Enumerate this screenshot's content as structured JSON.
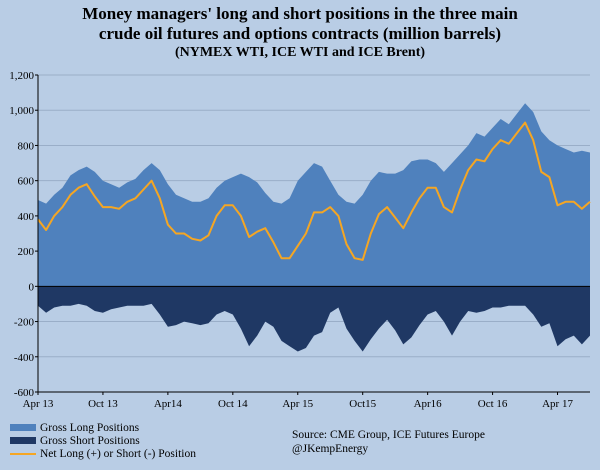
{
  "chart_data": {
    "type": "area",
    "title": [
      "Money managers' long and short positions in the three main",
      "crude oil futures and options contracts (million barrels)",
      "(NYMEX WTI, ICE WTI and ICE Brent)"
    ],
    "xlabel": "",
    "ylabel": "",
    "ylim": [
      -600,
      1200
    ],
    "yticks": [
      -600,
      -400,
      -200,
      0,
      200,
      400,
      600,
      800,
      1000,
      1200
    ],
    "ytick_labels": [
      "-600",
      "-400",
      "-200",
      "0",
      "200",
      "400",
      "600",
      "800",
      "1,000",
      "1,200"
    ],
    "xticks": [
      "Apr 13",
      "Oct 13",
      "Apr14",
      "Oct 14",
      "Apr 15",
      "Oct15",
      "Apr16",
      "Oct 16",
      "Apr 17"
    ],
    "x_start": "2013-04",
    "x_end": "2017-07",
    "gridlines": true,
    "series": [
      {
        "name": "Gross Long Positions",
        "kind": "area",
        "color": "#4f81bd",
        "values": [
          [
            0,
            490
          ],
          [
            1,
            470
          ],
          [
            2,
            520
          ],
          [
            3,
            560
          ],
          [
            4,
            630
          ],
          [
            5,
            660
          ],
          [
            6,
            680
          ],
          [
            7,
            650
          ],
          [
            8,
            600
          ],
          [
            9,
            580
          ],
          [
            10,
            560
          ],
          [
            11,
            590
          ],
          [
            12,
            610
          ],
          [
            13,
            660
          ],
          [
            14,
            700
          ],
          [
            15,
            660
          ],
          [
            16,
            580
          ],
          [
            17,
            520
          ],
          [
            18,
            500
          ],
          [
            19,
            480
          ],
          [
            20,
            480
          ],
          [
            21,
            500
          ],
          [
            22,
            560
          ],
          [
            23,
            600
          ],
          [
            24,
            620
          ],
          [
            25,
            640
          ],
          [
            26,
            620
          ],
          [
            27,
            590
          ],
          [
            28,
            530
          ],
          [
            29,
            480
          ],
          [
            30,
            470
          ],
          [
            31,
            500
          ],
          [
            32,
            600
          ],
          [
            33,
            650
          ],
          [
            34,
            700
          ],
          [
            35,
            680
          ],
          [
            36,
            600
          ],
          [
            37,
            520
          ],
          [
            38,
            480
          ],
          [
            39,
            470
          ],
          [
            40,
            520
          ],
          [
            41,
            600
          ],
          [
            42,
            650
          ],
          [
            43,
            640
          ],
          [
            44,
            640
          ],
          [
            45,
            660
          ],
          [
            46,
            710
          ],
          [
            47,
            720
          ],
          [
            48,
            720
          ],
          [
            49,
            700
          ],
          [
            50,
            650
          ],
          [
            51,
            700
          ],
          [
            52,
            750
          ],
          [
            53,
            800
          ],
          [
            54,
            870
          ],
          [
            55,
            850
          ],
          [
            56,
            900
          ],
          [
            57,
            950
          ],
          [
            58,
            920
          ],
          [
            59,
            980
          ],
          [
            60,
            1040
          ],
          [
            61,
            990
          ],
          [
            62,
            880
          ],
          [
            63,
            830
          ],
          [
            64,
            800
          ],
          [
            65,
            780
          ],
          [
            66,
            760
          ],
          [
            67,
            770
          ],
          [
            68,
            760
          ]
        ]
      },
      {
        "name": "Gross Short Positions",
        "kind": "area",
        "color": "#1f3864",
        "values": [
          [
            0,
            -110
          ],
          [
            1,
            -150
          ],
          [
            2,
            -120
          ],
          [
            3,
            -110
          ],
          [
            4,
            -110
          ],
          [
            5,
            -100
          ],
          [
            6,
            -110
          ],
          [
            7,
            -140
          ],
          [
            8,
            -150
          ],
          [
            9,
            -130
          ],
          [
            10,
            -120
          ],
          [
            11,
            -110
          ],
          [
            12,
            -110
          ],
          [
            13,
            -110
          ],
          [
            14,
            -100
          ],
          [
            15,
            -160
          ],
          [
            16,
            -230
          ],
          [
            17,
            -220
          ],
          [
            18,
            -200
          ],
          [
            19,
            -210
          ],
          [
            20,
            -220
          ],
          [
            21,
            -210
          ],
          [
            22,
            -160
          ],
          [
            23,
            -140
          ],
          [
            24,
            -160
          ],
          [
            25,
            -240
          ],
          [
            26,
            -340
          ],
          [
            27,
            -280
          ],
          [
            28,
            -200
          ],
          [
            29,
            -230
          ],
          [
            30,
            -310
          ],
          [
            31,
            -340
          ],
          [
            32,
            -370
          ],
          [
            33,
            -350
          ],
          [
            34,
            -280
          ],
          [
            35,
            -260
          ],
          [
            36,
            -150
          ],
          [
            37,
            -120
          ],
          [
            38,
            -240
          ],
          [
            39,
            -310
          ],
          [
            40,
            -370
          ],
          [
            41,
            -300
          ],
          [
            42,
            -240
          ],
          [
            43,
            -190
          ],
          [
            44,
            -250
          ],
          [
            45,
            -330
          ],
          [
            46,
            -290
          ],
          [
            47,
            -220
          ],
          [
            48,
            -160
          ],
          [
            49,
            -140
          ],
          [
            50,
            -200
          ],
          [
            51,
            -280
          ],
          [
            52,
            -200
          ],
          [
            53,
            -140
          ],
          [
            54,
            -150
          ],
          [
            55,
            -140
          ],
          [
            56,
            -120
          ],
          [
            57,
            -120
          ],
          [
            58,
            -110
          ],
          [
            59,
            -110
          ],
          [
            60,
            -110
          ],
          [
            61,
            -160
          ],
          [
            62,
            -230
          ],
          [
            63,
            -210
          ],
          [
            64,
            -340
          ],
          [
            65,
            -300
          ],
          [
            66,
            -280
          ],
          [
            67,
            -330
          ],
          [
            68,
            -280
          ]
        ]
      },
      {
        "name": "Net Long (+) or Short (-) Position",
        "kind": "line",
        "color": "#f5a623",
        "values": [
          [
            0,
            380
          ],
          [
            1,
            320
          ],
          [
            2,
            400
          ],
          [
            3,
            450
          ],
          [
            4,
            520
          ],
          [
            5,
            560
          ],
          [
            6,
            580
          ],
          [
            7,
            510
          ],
          [
            8,
            450
          ],
          [
            9,
            450
          ],
          [
            10,
            440
          ],
          [
            11,
            480
          ],
          [
            12,
            500
          ],
          [
            13,
            550
          ],
          [
            14,
            600
          ],
          [
            15,
            500
          ],
          [
            16,
            350
          ],
          [
            17,
            300
          ],
          [
            18,
            300
          ],
          [
            19,
            270
          ],
          [
            20,
            260
          ],
          [
            21,
            290
          ],
          [
            22,
            400
          ],
          [
            23,
            460
          ],
          [
            24,
            460
          ],
          [
            25,
            400
          ],
          [
            26,
            280
          ],
          [
            27,
            310
          ],
          [
            28,
            330
          ],
          [
            29,
            250
          ],
          [
            30,
            160
          ],
          [
            31,
            160
          ],
          [
            32,
            230
          ],
          [
            33,
            300
          ],
          [
            34,
            420
          ],
          [
            35,
            420
          ],
          [
            36,
            450
          ],
          [
            37,
            400
          ],
          [
            38,
            240
          ],
          [
            39,
            160
          ],
          [
            40,
            150
          ],
          [
            41,
            300
          ],
          [
            42,
            410
          ],
          [
            43,
            450
          ],
          [
            44,
            390
          ],
          [
            45,
            330
          ],
          [
            46,
            420
          ],
          [
            47,
            500
          ],
          [
            48,
            560
          ],
          [
            49,
            560
          ],
          [
            50,
            450
          ],
          [
            51,
            420
          ],
          [
            52,
            550
          ],
          [
            53,
            660
          ],
          [
            54,
            720
          ],
          [
            55,
            710
          ],
          [
            56,
            780
          ],
          [
            57,
            830
          ],
          [
            58,
            810
          ],
          [
            59,
            870
          ],
          [
            60,
            930
          ],
          [
            61,
            830
          ],
          [
            62,
            650
          ],
          [
            63,
            620
          ],
          [
            64,
            460
          ],
          [
            65,
            480
          ],
          [
            66,
            480
          ],
          [
            67,
            440
          ],
          [
            68,
            480
          ]
        ]
      }
    ],
    "legend": [
      {
        "label": "Gross Long Positions",
        "color": "#4f81bd",
        "kind": "area"
      },
      {
        "label": "Gross Short Positions",
        "color": "#1f3864",
        "kind": "area"
      },
      {
        "label": "Net Long (+) or Short (-) Position",
        "color": "#f5a623",
        "kind": "line"
      }
    ]
  },
  "source_lines": [
    "Source:  CME Group, ICE Futures Europe",
    "@JKempEnergy"
  ]
}
